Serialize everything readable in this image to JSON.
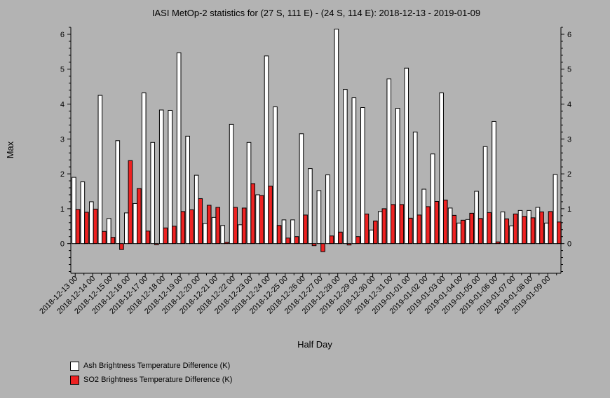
{
  "chart_data": {
    "type": "bar",
    "title": "IASI MetOp-2 statistics for (27 S, 111 E) - (24 S, 114 E): 2018-12-13 - 2019-01-09",
    "xlabel": "Half Day",
    "ylabel": "Max",
    "ylim": [
      -0.85,
      6.2
    ],
    "yticks": [
      0,
      1,
      2,
      3,
      4,
      5,
      6
    ],
    "grid": false,
    "legend_position": "bottom-left",
    "categories": [
      "2018-12-13 00",
      "2018-12-13 12",
      "2018-12-14 00",
      "2018-12-14 12",
      "2018-12-15 00",
      "2018-12-15 12",
      "2018-12-16 00",
      "2018-12-16 12",
      "2018-12-17 00",
      "2018-12-17 12",
      "2018-12-18 00",
      "2018-12-18 12",
      "2018-12-19 00",
      "2018-12-19 12",
      "2018-12-20 00",
      "2018-12-20 12",
      "2018-12-21 00",
      "2018-12-21 12",
      "2018-12-22 00",
      "2018-12-22 12",
      "2018-12-23 00",
      "2018-12-23 12",
      "2018-12-24 00",
      "2018-12-24 12",
      "2018-12-25 00",
      "2018-12-25 12",
      "2018-12-26 00",
      "2018-12-26 12",
      "2018-12-27 00",
      "2018-12-27 12",
      "2018-12-28 00",
      "2018-12-28 12",
      "2018-12-29 00",
      "2018-12-29 12",
      "2018-12-30 00",
      "2018-12-30 12",
      "2018-12-31 00",
      "2018-12-31 12",
      "2019-01-01 00",
      "2019-01-01 12",
      "2019-01-02 00",
      "2019-01-02 12",
      "2019-01-03 00",
      "2019-01-03 12",
      "2019-01-04 00",
      "2019-01-04 12",
      "2019-01-05 00",
      "2019-01-05 12",
      "2019-01-06 00",
      "2019-01-06 12",
      "2019-01-07 00",
      "2019-01-07 12",
      "2019-01-08 00",
      "2019-01-08 12",
      "2019-01-09 00",
      "2019-01-09 12"
    ],
    "tick_labels": [
      "2018-12-13 00",
      "2018-12-14 00",
      "2018-12-15 00",
      "2018-12-16 00",
      "2018-12-17 00",
      "2018-12-18 00",
      "2018-12-19 00",
      "2018-12-20 00",
      "2018-12-21 00",
      "2018-12-22 00",
      "2018-12-23 00",
      "2018-12-24 00",
      "2018-12-25 00",
      "2018-12-26 00",
      "2018-12-27 00",
      "2018-12-28 00",
      "2018-12-29 00",
      "2018-12-30 00",
      "2018-12-31 00",
      "2019-01-01 00",
      "2019-01-02 00",
      "2019-01-03 00",
      "2019-01-04 00",
      "2019-01-05 00",
      "2019-01-06 00",
      "2019-01-07 00",
      "2019-01-08 00",
      "2019-01-09 00"
    ],
    "series": [
      {
        "name": "Ash Brightness Temperature Difference (K)",
        "color": "#ffffff",
        "values": [
          1.9,
          1.77,
          1.2,
          4.25,
          0.72,
          2.95,
          0.88,
          1.15,
          4.32,
          2.9,
          3.83,
          3.82,
          5.47,
          3.08,
          1.96,
          0.58,
          0.75,
          0.52,
          3.42,
          0.54,
          2.9,
          1.4,
          5.38,
          3.92,
          0.68,
          0.68,
          3.15,
          2.15,
          1.52,
          1.97,
          6.15,
          4.42,
          4.18,
          3.9,
          0.39,
          0.92,
          4.72,
          3.88,
          5.03,
          3.2,
          1.56,
          2.57,
          4.32,
          1.02,
          0.59,
          0.69,
          1.5,
          2.78,
          3.5,
          0.91,
          0.51,
          0.95,
          0.95,
          1.04,
          0.59,
          1.98
        ]
      },
      {
        "name": "SO2 Brightness Temperature Difference (K)",
        "color": "#ee2222",
        "values": [
          0.98,
          0.9,
          0.99,
          0.35,
          0.18,
          -0.17,
          2.38,
          1.58,
          0.36,
          -0.03,
          0.45,
          0.5,
          0.92,
          0.97,
          1.29,
          1.1,
          1.04,
          0.04,
          1.04,
          1.02,
          1.72,
          1.38,
          1.65,
          0.52,
          0.16,
          0.2,
          0.82,
          -0.06,
          -0.23,
          0.22,
          0.33,
          -0.04,
          0.2,
          0.85,
          0.65,
          1.0,
          1.12,
          1.12,
          0.73,
          0.82,
          1.06,
          1.21,
          1.25,
          0.81,
          0.67,
          0.87,
          0.72,
          0.89,
          0.05,
          0.71,
          0.85,
          0.78,
          0.74,
          0.91,
          0.92,
          0.62
        ]
      }
    ]
  }
}
